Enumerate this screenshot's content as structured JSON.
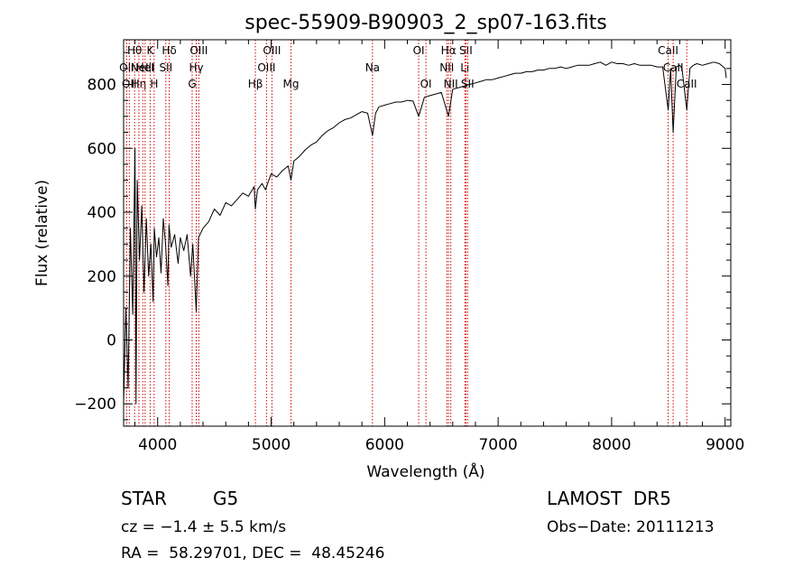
{
  "chart_data": {
    "type": "line",
    "title": "spec-55909-B90903_2_sp07-163.fits",
    "xlabel": "Wavelength (Å)",
    "ylabel": "Flux (relative)",
    "xlim": [
      3700,
      9050
    ],
    "ylim": [
      -270,
      940
    ],
    "xticks": [
      4000,
      5000,
      6000,
      7000,
      8000,
      9000
    ],
    "yticks": [
      -200,
      0,
      200,
      400,
      600,
      800
    ],
    "grid": false,
    "series": [
      {
        "values": [
          [
            3700,
            -200
          ],
          [
            3720,
            100
          ],
          [
            3740,
            -150
          ],
          [
            3760,
            350
          ],
          [
            3780,
            80
          ],
          [
            3800,
            600
          ],
          [
            3810,
            -200
          ],
          [
            3820,
            500
          ],
          [
            3840,
            250
          ],
          [
            3860,
            420
          ],
          [
            3880,
            150
          ],
          [
            3900,
            380
          ],
          [
            3920,
            200
          ],
          [
            3940,
            300
          ],
          [
            3960,
            120
          ],
          [
            3970,
            350
          ],
          [
            3990,
            260
          ],
          [
            4010,
            320
          ],
          [
            4030,
            210
          ],
          [
            4050,
            380
          ],
          [
            4070,
            300
          ],
          [
            4090,
            170
          ],
          [
            4100,
            360
          ],
          [
            4120,
            290
          ],
          [
            4150,
            330
          ],
          [
            4180,
            240
          ],
          [
            4200,
            320
          ],
          [
            4230,
            280
          ],
          [
            4260,
            330
          ],
          [
            4290,
            200
          ],
          [
            4310,
            300
          ],
          [
            4340,
            90
          ],
          [
            4360,
            320
          ],
          [
            4400,
            350
          ],
          [
            4450,
            370
          ],
          [
            4500,
            410
          ],
          [
            4550,
            390
          ],
          [
            4600,
            430
          ],
          [
            4650,
            420
          ],
          [
            4700,
            440
          ],
          [
            4750,
            460
          ],
          [
            4800,
            450
          ],
          [
            4850,
            480
          ],
          [
            4861,
            410
          ],
          [
            4880,
            470
          ],
          [
            4920,
            490
          ],
          [
            4950,
            470
          ],
          [
            5000,
            520
          ],
          [
            5050,
            510
          ],
          [
            5100,
            530
          ],
          [
            5150,
            545
          ],
          [
            5175,
            500
          ],
          [
            5200,
            560
          ],
          [
            5250,
            575
          ],
          [
            5300,
            595
          ],
          [
            5350,
            610
          ],
          [
            5400,
            620
          ],
          [
            5450,
            640
          ],
          [
            5500,
            655
          ],
          [
            5550,
            665
          ],
          [
            5600,
            680
          ],
          [
            5650,
            690
          ],
          [
            5700,
            695
          ],
          [
            5750,
            705
          ],
          [
            5800,
            715
          ],
          [
            5850,
            710
          ],
          [
            5893,
            640
          ],
          [
            5920,
            710
          ],
          [
            5950,
            730
          ],
          [
            6000,
            735
          ],
          [
            6050,
            740
          ],
          [
            6100,
            745
          ],
          [
            6150,
            745
          ],
          [
            6200,
            750
          ],
          [
            6250,
            748
          ],
          [
            6300,
            700
          ],
          [
            6350,
            760
          ],
          [
            6400,
            765
          ],
          [
            6450,
            770
          ],
          [
            6500,
            775
          ],
          [
            6563,
            700
          ],
          [
            6600,
            785
          ],
          [
            6650,
            790
          ],
          [
            6700,
            795
          ],
          [
            6750,
            800
          ],
          [
            6800,
            805
          ],
          [
            6850,
            810
          ],
          [
            6900,
            815
          ],
          [
            6950,
            815
          ],
          [
            7000,
            820
          ],
          [
            7050,
            825
          ],
          [
            7100,
            830
          ],
          [
            7150,
            835
          ],
          [
            7200,
            835
          ],
          [
            7250,
            840
          ],
          [
            7300,
            840
          ],
          [
            7350,
            845
          ],
          [
            7400,
            845
          ],
          [
            7450,
            850
          ],
          [
            7500,
            850
          ],
          [
            7550,
            855
          ],
          [
            7600,
            850
          ],
          [
            7650,
            855
          ],
          [
            7700,
            860
          ],
          [
            7750,
            860
          ],
          [
            7800,
            860
          ],
          [
            7850,
            865
          ],
          [
            7900,
            870
          ],
          [
            7950,
            860
          ],
          [
            8000,
            870
          ],
          [
            8050,
            865
          ],
          [
            8100,
            865
          ],
          [
            8150,
            860
          ],
          [
            8200,
            865
          ],
          [
            8250,
            860
          ],
          [
            8300,
            860
          ],
          [
            8350,
            860
          ],
          [
            8400,
            855
          ],
          [
            8450,
            855
          ],
          [
            8498,
            720
          ],
          [
            8520,
            850
          ],
          [
            8542,
            650
          ],
          [
            8570,
            855
          ],
          [
            8600,
            860
          ],
          [
            8620,
            850
          ],
          [
            8662,
            720
          ],
          [
            8690,
            850
          ],
          [
            8720,
            860
          ],
          [
            8750,
            865
          ],
          [
            8800,
            860
          ],
          [
            8850,
            865
          ],
          [
            8900,
            870
          ],
          [
            8950,
            865
          ],
          [
            9000,
            850
          ],
          [
            9010,
            820
          ]
        ]
      }
    ],
    "lines": [
      {
        "x": 3727,
        "label": "OII",
        "row": 1
      },
      {
        "x": 3750,
        "label": "OII",
        "row": 2
      },
      {
        "x": 3797,
        "label": "Hθ",
        "row": 0
      },
      {
        "x": 3835,
        "label": "Hη",
        "row": 2
      },
      {
        "x": 3869,
        "label": "NeIII",
        "row": 1
      },
      {
        "x": 3889,
        "label": "HeI",
        "row": 1
      },
      {
        "x": 3934,
        "label": "K",
        "row": 0
      },
      {
        "x": 3969,
        "label": "H",
        "row": 2
      },
      {
        "x": 4072,
        "label": "SII",
        "row": 1
      },
      {
        "x": 4102,
        "label": "Hδ",
        "row": 0
      },
      {
        "x": 4304,
        "label": "G",
        "row": 2
      },
      {
        "x": 4340,
        "label": "Hγ",
        "row": 1
      },
      {
        "x": 4363,
        "label": "OIII",
        "row": 0
      },
      {
        "x": 4861,
        "label": "Hβ",
        "row": 2
      },
      {
        "x": 4959,
        "label": "OIII",
        "row": 1
      },
      {
        "x": 5007,
        "label": "OIII",
        "row": 0
      },
      {
        "x": 5175,
        "label": "Mg",
        "row": 2
      },
      {
        "x": 5893,
        "label": "Na",
        "row": 1
      },
      {
        "x": 6300,
        "label": "OI",
        "row": 0
      },
      {
        "x": 6364,
        "label": "OI",
        "row": 2
      },
      {
        "x": 6548,
        "label": "NII",
        "row": 1
      },
      {
        "x": 6563,
        "label": "Hα",
        "row": 0
      },
      {
        "x": 6583,
        "label": "NII",
        "row": 2
      },
      {
        "x": 6707,
        "label": "Li",
        "row": 1
      },
      {
        "x": 6716,
        "label": "SII",
        "row": 0
      },
      {
        "x": 6731,
        "label": "SII",
        "row": 2
      },
      {
        "x": 8498,
        "label": "CaII",
        "row": 0
      },
      {
        "x": 8542,
        "label": "CaII",
        "row": 1
      },
      {
        "x": 8662,
        "label": "CaII",
        "row": 2
      }
    ]
  },
  "info": {
    "class_label": "STAR",
    "subclass_label": "G5",
    "survey": "LAMOST  DR5",
    "cz_text": "cz = −1.4 ± 5.5 km/s",
    "obs_date": "Obs−Date: 20111213",
    "coords": "RA =  58.29701, DEC =  48.45246"
  },
  "colors": {
    "spectrum": "#000000",
    "line_markers": "#cc0000",
    "background": "#ffffff"
  }
}
